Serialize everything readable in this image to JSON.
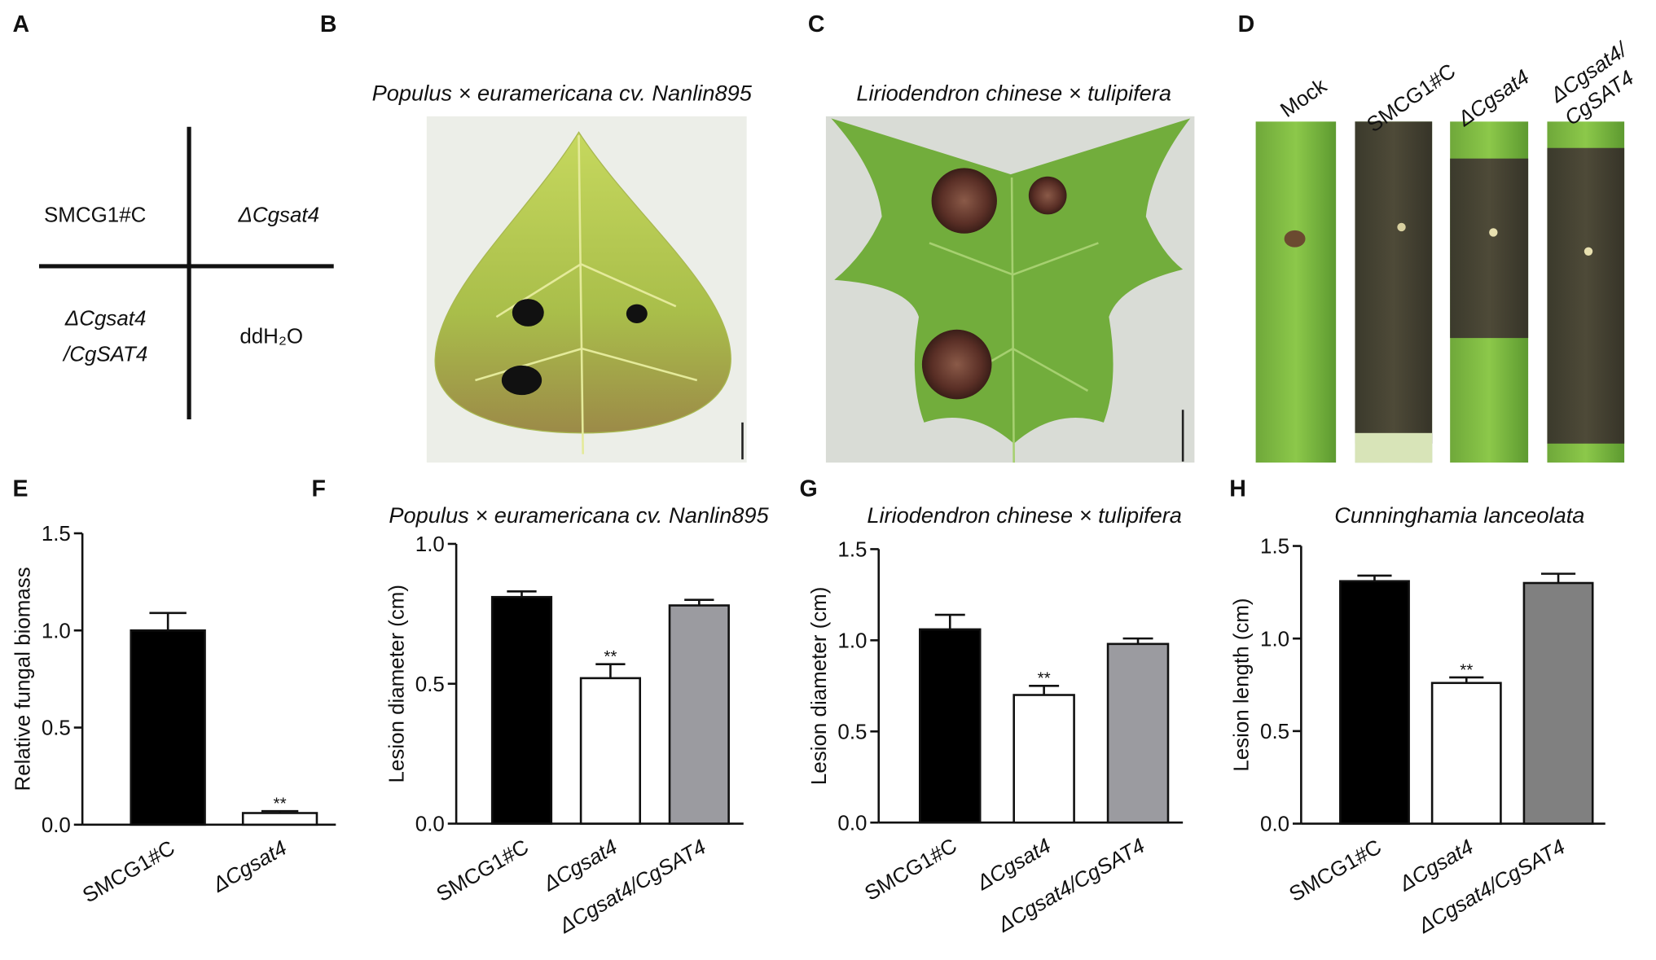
{
  "diagram": {
    "panel": "A",
    "quadrants": [
      {
        "lines": [
          "SMCG1#C"
        ],
        "italic": false
      },
      {
        "lines": [
          "ΔCgsat4"
        ],
        "italic": true
      },
      {
        "lines": [
          "ΔCgsat4",
          "/CgSAT4"
        ],
        "italic": true
      },
      {
        "lines": [
          "ddH₂O"
        ],
        "italic": false
      }
    ]
  },
  "photos": [
    {
      "panel": "B",
      "title": "Populus × euramericana cv. Nanlin895"
    },
    {
      "panel": "C",
      "title": "Liriodendron chinese × tulipifera"
    },
    {
      "panel": "D",
      "lanes": [
        {
          "lines": [
            "Mock"
          ],
          "italic": false
        },
        {
          "lines": [
            "SMCG1#C"
          ],
          "italic": false
        },
        {
          "lines": [
            "ΔCgsat4"
          ],
          "italic": true
        },
        {
          "lines": [
            "ΔCgsat4/",
            "CgSAT4"
          ],
          "italic": true
        }
      ]
    }
  ],
  "chart_data": [
    {
      "type": "bar",
      "panel": "E",
      "ylabel": "Relative fungal biomass",
      "categories": [
        "SMCG1#C",
        "ΔCgsat4"
      ],
      "italic_categories": [
        false,
        true
      ],
      "values": [
        1.0,
        0.06
      ],
      "errors": [
        0.09,
        0.01
      ],
      "colors": [
        "#000000",
        "#ffffff"
      ],
      "significance": [
        null,
        "**"
      ],
      "ylim": [
        0,
        1.5
      ],
      "yticks": [
        {
          "value": 0,
          "label": "0.0"
        },
        0.5,
        {
          "value": 1,
          "label": "1.0"
        },
        1.5
      ]
    },
    {
      "type": "bar",
      "panel": "F",
      "title": "Populus × euramericana cv. Nanlin895",
      "ylabel": "Lesion diameter (cm)",
      "categories": [
        "SMCG1#C",
        "ΔCgsat4",
        "ΔCgsat4/CgSAT4"
      ],
      "italic_categories": [
        false,
        true,
        true
      ],
      "values": [
        0.81,
        0.52,
        0.78
      ],
      "errors": [
        0.02,
        0.05,
        0.02
      ],
      "colors": [
        "#000000",
        "#ffffff",
        "#9b9ba0"
      ],
      "significance": [
        null,
        "**",
        null
      ],
      "ylim": [
        0,
        1
      ],
      "yticks": [
        {
          "value": 0,
          "label": "0.0"
        },
        0.5,
        {
          "value": 1,
          "label": "1.0"
        }
      ]
    },
    {
      "type": "bar",
      "panel": "G",
      "title": "Liriodendron chinese × tulipifera",
      "ylabel": "Lesion diameter (cm)",
      "categories": [
        "SMCG1#C",
        "ΔCgsat4",
        "ΔCgsat4/CgSAT4"
      ],
      "italic_categories": [
        false,
        true,
        true
      ],
      "values": [
        1.06,
        0.7,
        0.98
      ],
      "errors": [
        0.08,
        0.05,
        0.03
      ],
      "colors": [
        "#000000",
        "#ffffff",
        "#9b9ba0"
      ],
      "significance": [
        null,
        "**",
        null
      ],
      "ylim": [
        0,
        1.5
      ],
      "yticks": [
        {
          "value": 0,
          "label": "0.0"
        },
        0.5,
        {
          "value": 1,
          "label": "1.0"
        },
        1.5
      ]
    },
    {
      "type": "bar",
      "panel": "H",
      "title": "Cunninghamia lanceolata",
      "ylabel": "Lesion length (cm)",
      "categories": [
        "SMCG1#C",
        "ΔCgsat4",
        "ΔCgsat4/CgSAT4"
      ],
      "italic_categories": [
        false,
        true,
        true
      ],
      "values": [
        1.31,
        0.76,
        1.3
      ],
      "errors": [
        0.03,
        0.03,
        0.05
      ],
      "colors": [
        "#000000",
        "#ffffff",
        "#808080"
      ],
      "significance": [
        null,
        "**",
        null
      ],
      "ylim": [
        0,
        1.5
      ],
      "yticks": [
        {
          "value": 0,
          "label": "0.0"
        },
        0.5,
        {
          "value": 1,
          "label": "1.0"
        },
        1.5
      ]
    }
  ]
}
